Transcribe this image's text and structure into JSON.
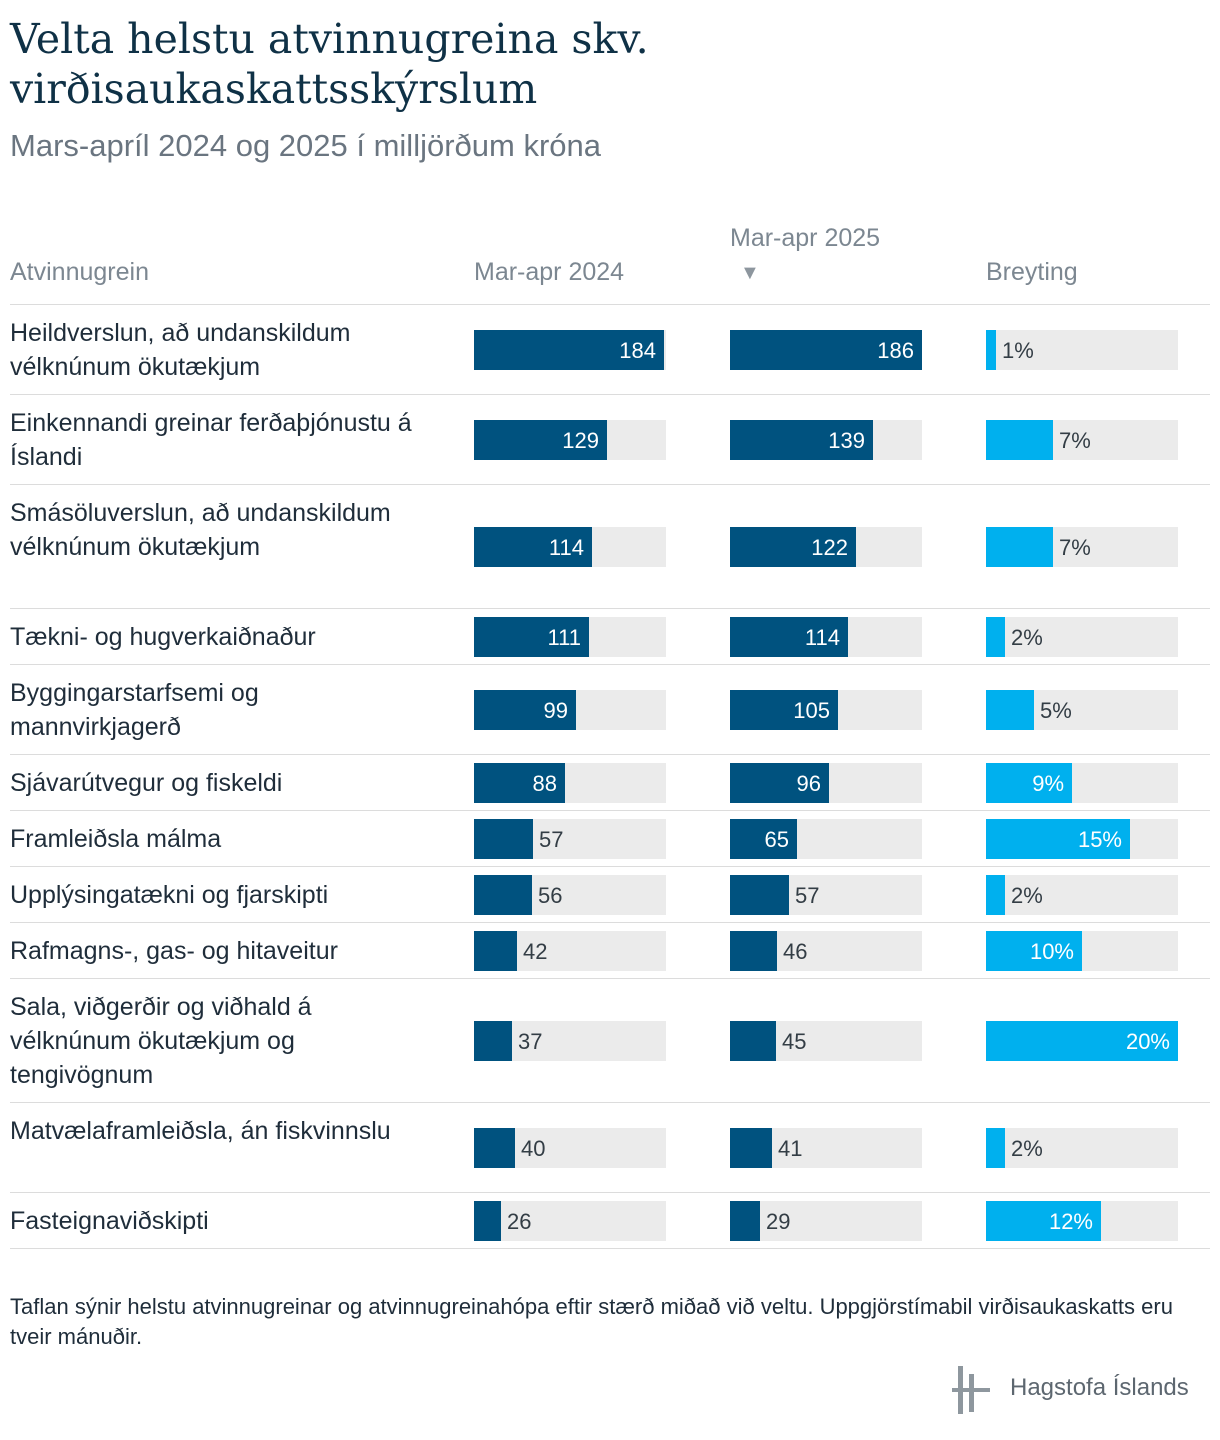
{
  "title": "Velta helstu atvinnugreina skv. virðisaukaskattsskýrslum",
  "subtitle": "Mars-apríl 2024 og 2025 í milljörðum króna",
  "columns": {
    "industry": "Atvinnugrein",
    "y2024": "Mar-apr 2024",
    "y2025": "Mar-apr 2025",
    "change": "Breyting",
    "sort_indicator": "▼"
  },
  "footnote": "Taflan sýnir helstu atvinnugreinar og atvinnugreinahópa eftir stærð miðað við veltu. Uppgjörstímabil virðisaukaskatts eru tveir mánuðir.",
  "logo_text": "Hagstofa Íslands",
  "colors": {
    "value_bar": "#00527f",
    "change_bar": "#00b0ee",
    "track": "#ebebeb"
  },
  "chart_data": {
    "type": "table",
    "title": "Velta helstu atvinnugreina skv. virðisaukaskattsskýrslum",
    "subtitle": "Mars-apríl 2024 og 2025 í milljörðum króna",
    "value_max": 186,
    "change_max": 20,
    "rows": [
      {
        "label": "Heildverslun, að undanskildum vélknúnum ökutækjum",
        "v2024": 184,
        "v2025": 186,
        "change": 1,
        "change_label": "1%"
      },
      {
        "label": "Einkennandi greinar ferðaþjónustu á Íslandi",
        "v2024": 129,
        "v2025": 139,
        "change": 7,
        "change_label": "7%"
      },
      {
        "label": "Smásöluverslun, að undanskildum vélknúnum ökutækjum",
        "v2024": 114,
        "v2025": 122,
        "change": 7,
        "change_label": "7%"
      },
      {
        "label": "Tækni- og hugverkaiðnaður",
        "v2024": 111,
        "v2025": 114,
        "change": 2,
        "change_label": "2%"
      },
      {
        "label": "Byggingarstarfsemi og mannvirkjagerð",
        "v2024": 99,
        "v2025": 105,
        "change": 5,
        "change_label": "5%"
      },
      {
        "label": "Sjávarútvegur og fiskeldi",
        "v2024": 88,
        "v2025": 96,
        "change": 9,
        "change_label": "9%"
      },
      {
        "label": "Framleiðsla málma",
        "v2024": 57,
        "v2025": 65,
        "change": 15,
        "change_label": "15%"
      },
      {
        "label": "Upplýsingatækni og fjarskipti",
        "v2024": 56,
        "v2025": 57,
        "change": 2,
        "change_label": "2%"
      },
      {
        "label": "Rafmagns-, gas- og hitaveitur",
        "v2024": 42,
        "v2025": 46,
        "change": 10,
        "change_label": "10%"
      },
      {
        "label": "Sala, viðgerðir og viðhald á vélknúnum ökutækjum og tengivögnum",
        "v2024": 37,
        "v2025": 45,
        "change": 20,
        "change_label": "20%"
      },
      {
        "label": "Matvælaframleiðsla, án fiskvinnslu",
        "v2024": 40,
        "v2025": 41,
        "change": 2,
        "change_label": "2%"
      },
      {
        "label": "Fasteignaviðskipti",
        "v2024": 26,
        "v2025": 29,
        "change": 12,
        "change_label": "12%"
      }
    ]
  }
}
